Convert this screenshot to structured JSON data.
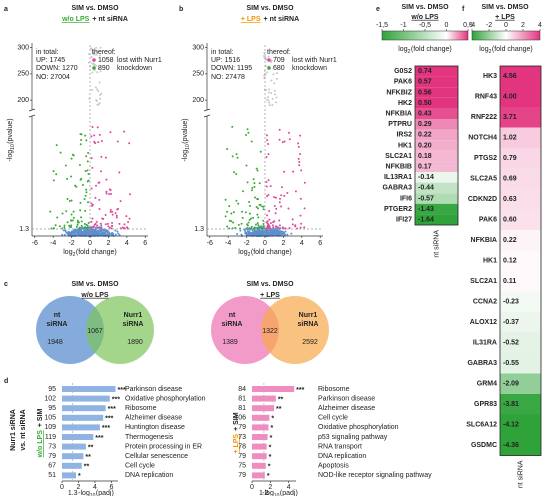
{
  "panel_a": {
    "letter": "a",
    "title": "SIM vs. DMSO",
    "condition": "w/o LPS",
    "rest": "+ nt siRNA",
    "in_total": "in total:",
    "up": "UP: 1745",
    "down": "DOWN: 1270",
    "no": "NO: 27004",
    "thereof": "thereof:",
    "lost": "1058",
    "lost_text": "lost with Nurr1",
    "knock": "890",
    "knock_text": "knockdown",
    "xlabel_pre": "log",
    "xlabel_sub": "2",
    "xlabel_post": "(fold change)",
    "ylabel_pre": "-log",
    "ylabel_sub": "10",
    "ylabel_post": "(pvalue)",
    "xlim": [
      -6.3,
      6.3
    ],
    "xticks": [
      -6,
      -4,
      -2,
      0,
      2,
      4,
      6
    ],
    "ylim_upper": [
      185,
      305
    ],
    "yticks_upper": [
      200,
      250,
      300
    ],
    "ylim_lower": [
      0,
      22
    ],
    "yticks_lower": [
      1.3
    ]
  },
  "panel_b": {
    "letter": "b",
    "title": "SIM vs. DMSO",
    "condition": "+ LPS",
    "rest": "+ nt siRNA",
    "in_total": "in total:",
    "up": "UP: 1516",
    "down": "DOWN: 1195",
    "no": "NO: 27478",
    "thereof": "thereof:",
    "lost": "709",
    "lost_text": "lost with Nurr1",
    "knock": "680",
    "knock_text": "knockdown",
    "xlabel_pre": "log",
    "xlabel_sub": "2",
    "xlabel_post": "(fold change)",
    "ylabel_pre": "-log",
    "ylabel_sub": "10",
    "ylabel_post": "(pvalue)",
    "xlim": [
      -6.3,
      6.3
    ],
    "xticks": [
      -6,
      -4,
      -2,
      0,
      2,
      4,
      6
    ],
    "ylim_upper": [
      185,
      305
    ],
    "yticks_upper": [
      200,
      250,
      300
    ],
    "ylim_lower": [
      0,
      22
    ],
    "yticks_lower": [
      1.3
    ]
  },
  "panel_c": {
    "letter": "c",
    "venns": [
      {
        "title": "SIM vs. DMSO",
        "condition": "w/o LPS",
        "set1": [
          "nt",
          "siRNA"
        ],
        "set2": [
          "Nurr1",
          "siRNA"
        ],
        "only1": 1948,
        "both": 1067,
        "only2": 1890
      },
      {
        "title": "SIM vs. DMSO",
        "condition": "+ LPS",
        "set1": [
          "nt",
          "siRNA"
        ],
        "set2": [
          "Nurr1",
          "siRNA"
        ],
        "only1": 1389,
        "both": 1322,
        "only2": 2592
      }
    ]
  },
  "panel_d": {
    "letter": "d",
    "ylabel": [
      "Nurr1 siRNA",
      "vs. nt siRNA"
    ],
    "charts": [
      {
        "condition": "w/o LPS",
        "rest": "+ SIM",
        "terms": [
          "Parkinson disease",
          "Oxidative phosphorylation",
          "Ribosome",
          "Alzheimer disease",
          "Huntington disease",
          "Thermogenesis",
          "Protein processing in ER",
          "Cellular senescence",
          "Cell cycle",
          "DNA replication"
        ],
        "counts": [
          95,
          102,
          95,
          105,
          109,
          119,
          73,
          79,
          67,
          51
        ],
        "values": [
          6.5,
          5.8,
          5.3,
          5.0,
          4.6,
          3.8,
          2.9,
          2.6,
          2.4,
          1.7
        ],
        "stars": [
          "***",
          "***",
          "***",
          "***",
          "***",
          "***",
          "**",
          "**",
          "**",
          "*"
        ],
        "xlim": [
          0,
          6.8
        ],
        "xticks": [
          0,
          2,
          4,
          6
        ],
        "threshold": 1.3,
        "xlabel_pre": "-log",
        "xlabel_sub": "10",
        "xlabel_post": "(padj)"
      },
      {
        "condition": "+ LPS",
        "rest": "+ SIM",
        "terms": [
          "Ribosome",
          "Parkinson disease",
          "Alzheimer disease",
          "Cell cycle",
          "Oxidative phosphorylation",
          "p53 signaling pathway",
          "RNA transport",
          "DNA replication",
          "Apoptosis",
          "NOD-like receptor signaling pathway"
        ],
        "counts": [
          84,
          81,
          81,
          106,
          79,
          73,
          78,
          79,
          75,
          79
        ],
        "values": [
          4.6,
          2.6,
          2.4,
          1.9,
          1.8,
          1.7,
          1.6,
          1.6,
          1.5,
          1.4
        ],
        "stars": [
          "***",
          "**",
          "**",
          "*",
          "*",
          "*",
          "*",
          "*",
          "*",
          "*"
        ],
        "xlim": [
          0,
          4.8
        ],
        "xticks": [
          0,
          2,
          4
        ],
        "threshold": 1.3,
        "xlabel_pre": "-log",
        "xlabel_sub": "10",
        "xlabel_post": "(padj)"
      }
    ]
  },
  "panel_e": {
    "letter": "e",
    "title": "SIM vs. DMSO",
    "condition": "w/o LPS",
    "colorbar_lim": [
      -1.5,
      0.5
    ],
    "colorbar_ticks": [
      {
        "value": -1.5,
        "label": "-1,5"
      },
      -1,
      {
        "value": -0.5,
        "label": "-0,5"
      },
      0,
      {
        "value": 0.5,
        "label": "0,5"
      }
    ],
    "colorbar_pre": "log",
    "colorbar_sub": "2",
    "colorbar_post": "(fold change)",
    "genes": [
      "G0S2",
      "PAK6",
      "NFKBIZ",
      "HK2",
      "NFKBIA",
      "PTPRU",
      "IRS2",
      "HK1",
      "SLC2A1",
      "NFKBIB",
      "IL13RA1",
      "GABRA3",
      "IFI6",
      "PTGER2",
      "IFI27"
    ],
    "values": [
      0.74,
      0.57,
      0.56,
      0.5,
      0.43,
      0.29,
      0.22,
      0.2,
      0.18,
      0.17,
      -0.14,
      -0.44,
      -0.57,
      -1.43,
      -1.64
    ],
    "value_labels": [
      "0.74",
      "0.57",
      "0.56",
      "0.50",
      "0.43",
      "0.29",
      "0.22",
      "0.20",
      "0.18",
      "0.17",
      "-0.14",
      "-0.44",
      "-0.57",
      "-1.43",
      "-1.64"
    ],
    "column": "nt siRNA"
  },
  "panel_f": {
    "letter": "f",
    "title": "SIM vs. DMSO",
    "condition": "+ LPS",
    "colorbar_lim": [
      -4,
      4
    ],
    "colorbar_ticks": [
      -4,
      -2,
      0,
      2,
      4
    ],
    "colorbar_pre": "log",
    "colorbar_sub": "2",
    "colorbar_post": "(fold change)",
    "genes": [
      "HK3",
      "RNF43",
      "RNF222",
      "NOTCH4",
      "PTGS2",
      "SLC2A5",
      "CDKN2D",
      "PAK6",
      "NFKBIA",
      "HK1",
      "SLC2A1",
      "CCNA2",
      "ALOX12",
      "IL31RA",
      "GABRA3",
      "GRM4",
      "GPR83",
      "SLC6A12",
      "GSDMC"
    ],
    "values": [
      4.56,
      4.0,
      3.71,
      1.02,
      0.79,
      0.69,
      0.63,
      0.6,
      0.22,
      0.12,
      0.11,
      -0.23,
      -0.37,
      -0.52,
      -0.55,
      -2.09,
      -3.81,
      -4.12,
      -4.36
    ],
    "value_labels": [
      "4.56",
      "4.00",
      "3.71",
      "1.02",
      "0.79",
      "0.69",
      "0.63",
      "0.60",
      "0.22",
      "0.12",
      "0.11",
      "-0.23",
      "-0.37",
      "-0.52",
      "-0.55",
      "-2.09",
      "-3.81",
      "-4.12",
      "-4.36"
    ],
    "column": "nt siRNA"
  }
}
